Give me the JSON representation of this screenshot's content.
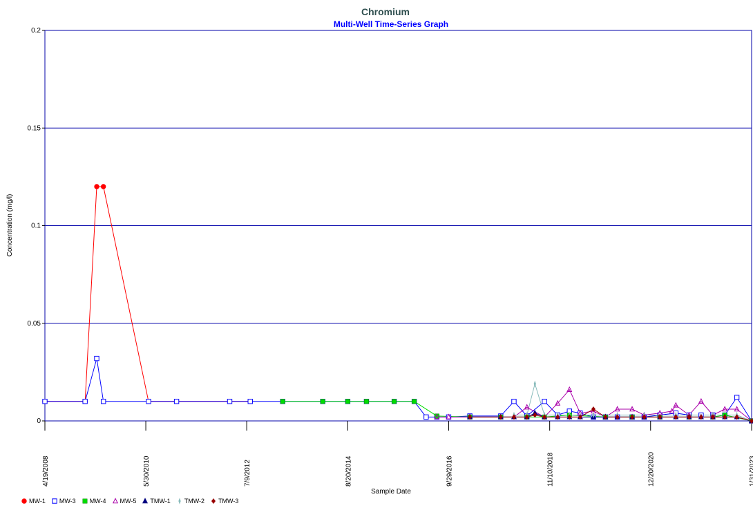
{
  "chart_data": {
    "type": "line",
    "title": "Chromium",
    "subtitle": "Multi-Well Time-Series Graph",
    "xlabel": "Sample Date",
    "ylabel": "Concentration (mg/l)",
    "ylim": [
      0,
      0.2
    ],
    "xlim": [
      "2008-04-19",
      "2023-01-31"
    ],
    "grid": {
      "horizontal": true,
      "vertical": false
    },
    "legend_position": "bottom-left",
    "y_ticks": [
      {
        "value": 0,
        "label": "0"
      },
      {
        "value": 0.05,
        "label": "0.05"
      },
      {
        "value": 0.1,
        "label": "0.1"
      },
      {
        "value": 0.15,
        "label": "0.15"
      },
      {
        "value": 0.2,
        "label": "0.2"
      }
    ],
    "x_ticks": [
      {
        "date": "2008-04-19",
        "label": "4/19/2008"
      },
      {
        "date": "2010-05-30",
        "label": "5/30/2010"
      },
      {
        "date": "2012-07-09",
        "label": "7/9/2012"
      },
      {
        "date": "2014-08-20",
        "label": "8/20/2014"
      },
      {
        "date": "2016-09-29",
        "label": "9/29/2016"
      },
      {
        "date": "2018-11-10",
        "label": "11/10/2018"
      },
      {
        "date": "2020-12-20",
        "label": "12/20/2020"
      },
      {
        "date": "2023-01-31",
        "label": "1/31/2023"
      }
    ],
    "colors": {
      "title": "#2f4f4f",
      "subtitle": "#0000ff",
      "frame": "#0000aa",
      "grid": "#0000aa"
    },
    "series": [
      {
        "name": "MW-1",
        "color": "#ff0000",
        "marker": "circle",
        "points": [
          [
            "2008-04-19",
            0.01
          ],
          [
            "2009-02-20",
            0.01
          ],
          [
            "2009-05-20",
            0.12
          ],
          [
            "2009-07-10",
            0.12
          ],
          [
            "2010-06-20",
            0.01
          ],
          [
            "2011-01-20",
            0.01
          ],
          [
            "2012-03-01",
            0.01
          ],
          [
            "2012-08-05",
            0.01
          ]
        ]
      },
      {
        "name": "MW-3",
        "color": "#0000ff",
        "marker": "square-open",
        "points": [
          [
            "2008-04-19",
            0.01
          ],
          [
            "2009-02-20",
            0.01
          ],
          [
            "2009-05-20",
            0.032
          ],
          [
            "2009-07-10",
            0.01
          ],
          [
            "2010-06-20",
            0.01
          ],
          [
            "2011-01-20",
            0.01
          ],
          [
            "2012-03-01",
            0.01
          ],
          [
            "2012-08-05",
            0.01
          ],
          [
            "2013-04-10",
            0.01
          ],
          [
            "2014-02-10",
            0.01
          ],
          [
            "2014-08-20",
            0.01
          ],
          [
            "2015-01-10",
            0.01
          ],
          [
            "2015-08-10",
            0.01
          ],
          [
            "2016-01-10",
            0.01
          ],
          [
            "2016-04-10",
            0.002
          ],
          [
            "2016-07-01",
            0.002
          ],
          [
            "2016-09-29",
            0.002
          ],
          [
            "2017-03-10",
            0.0025
          ],
          [
            "2017-11-01",
            0.0025
          ],
          [
            "2018-02-10",
            0.01
          ],
          [
            "2018-05-20",
            0.0025
          ],
          [
            "2018-10-01",
            0.01
          ],
          [
            "2019-01-10",
            0.003
          ],
          [
            "2019-04-10",
            0.005
          ],
          [
            "2019-07-01",
            0.004
          ],
          [
            "2019-10-10",
            0.002
          ],
          [
            "2020-01-10",
            0.002
          ],
          [
            "2020-04-10",
            0.002
          ],
          [
            "2020-08-01",
            0.002
          ],
          [
            "2020-11-01",
            0.002
          ],
          [
            "2021-03-01",
            0.003
          ],
          [
            "2021-07-01",
            0.004
          ],
          [
            "2021-10-10",
            0.003
          ],
          [
            "2022-01-10",
            0.003
          ],
          [
            "2022-04-10",
            0.003
          ],
          [
            "2022-07-10",
            0.003
          ],
          [
            "2022-10-10",
            0.012
          ],
          [
            "2023-01-31",
            0.0
          ]
        ]
      },
      {
        "name": "MW-4",
        "color": "#00dd00",
        "marker": "square",
        "points": [
          [
            "2013-04-10",
            0.01
          ],
          [
            "2014-02-10",
            0.01
          ],
          [
            "2014-08-20",
            0.01
          ],
          [
            "2015-01-10",
            0.01
          ],
          [
            "2015-08-10",
            0.01
          ],
          [
            "2016-01-10",
            0.01
          ],
          [
            "2016-07-01",
            0.0025
          ],
          [
            "2017-03-10",
            0.002
          ],
          [
            "2017-11-01",
            0.002
          ],
          [
            "2018-05-20",
            0.002
          ],
          [
            "2018-10-01",
            0.002
          ],
          [
            "2019-04-10",
            0.003
          ],
          [
            "2020-01-10",
            0.002
          ],
          [
            "2020-08-01",
            0.002
          ],
          [
            "2021-03-01",
            0.002
          ],
          [
            "2021-10-10",
            0.002
          ],
          [
            "2022-04-10",
            0.002
          ],
          [
            "2022-07-10",
            0.003
          ],
          [
            "2023-01-31",
            0.0
          ]
        ]
      },
      {
        "name": "MW-5",
        "color": "#aa00aa",
        "marker": "triangle-open",
        "points": [
          [
            "2016-07-01",
            0.002
          ],
          [
            "2016-09-29",
            0.002
          ],
          [
            "2017-03-10",
            0.002
          ],
          [
            "2017-11-01",
            0.002
          ],
          [
            "2018-02-10",
            0.002
          ],
          [
            "2018-05-20",
            0.007
          ],
          [
            "2018-10-01",
            0.002
          ],
          [
            "2019-01-10",
            0.009
          ],
          [
            "2019-04-10",
            0.016
          ],
          [
            "2019-07-01",
            0.004
          ],
          [
            "2019-10-10",
            0.005
          ],
          [
            "2020-01-10",
            0.002
          ],
          [
            "2020-04-10",
            0.006
          ],
          [
            "2020-08-01",
            0.006
          ],
          [
            "2020-11-01",
            0.003
          ],
          [
            "2021-03-01",
            0.004
          ],
          [
            "2021-06-01",
            0.005
          ],
          [
            "2021-07-01",
            0.008
          ],
          [
            "2021-10-10",
            0.003
          ],
          [
            "2022-01-10",
            0.01
          ],
          [
            "2022-04-10",
            0.003
          ],
          [
            "2022-07-10",
            0.006
          ],
          [
            "2022-10-10",
            0.006
          ],
          [
            "2023-01-31",
            0.0
          ]
        ]
      },
      {
        "name": "TMW-1",
        "color": "#000080",
        "marker": "triangle",
        "points": [
          [
            "2017-03-10",
            0.002
          ],
          [
            "2017-11-01",
            0.002
          ],
          [
            "2018-02-10",
            0.002
          ],
          [
            "2018-05-20",
            0.002
          ],
          [
            "2018-07-20",
            0.004
          ],
          [
            "2018-10-01",
            0.002
          ],
          [
            "2019-01-10",
            0.002
          ],
          [
            "2019-04-10",
            0.002
          ],
          [
            "2019-07-01",
            0.002
          ],
          [
            "2019-10-10",
            0.002
          ],
          [
            "2020-01-10",
            0.002
          ],
          [
            "2020-04-10",
            0.002
          ],
          [
            "2020-08-01",
            0.002
          ],
          [
            "2020-11-01",
            0.002
          ],
          [
            "2021-03-01",
            0.002
          ],
          [
            "2021-07-01",
            0.002
          ],
          [
            "2021-10-10",
            0.002
          ],
          [
            "2022-01-10",
            0.002
          ],
          [
            "2022-04-10",
            0.002
          ],
          [
            "2022-07-10",
            0.002
          ],
          [
            "2022-10-10",
            0.002
          ],
          [
            "2023-01-31",
            0.0
          ]
        ]
      },
      {
        "name": "TMW-2",
        "color": "#88bbbb",
        "marker": "diamond-thin",
        "points": [
          [
            "2018-02-10",
            0.003
          ],
          [
            "2018-05-20",
            0.003
          ],
          [
            "2018-07-20",
            0.019
          ],
          [
            "2018-10-01",
            0.003
          ],
          [
            "2019-01-10",
            0.003
          ],
          [
            "2019-04-10",
            0.003
          ],
          [
            "2019-07-01",
            0.003
          ],
          [
            "2019-10-10",
            0.003
          ],
          [
            "2020-04-10",
            0.003
          ],
          [
            "2020-11-01",
            0.003
          ],
          [
            "2021-07-01",
            0.003
          ],
          [
            "2022-04-10",
            0.003
          ],
          [
            "2022-10-10",
            0.003
          ],
          [
            "2023-01-31",
            0.0
          ]
        ]
      },
      {
        "name": "TMW-3",
        "color": "#990000",
        "marker": "diamond",
        "points": [
          [
            "2017-03-10",
            0.002
          ],
          [
            "2017-11-01",
            0.002
          ],
          [
            "2018-02-10",
            0.002
          ],
          [
            "2018-05-20",
            0.002
          ],
          [
            "2018-07-20",
            0.003
          ],
          [
            "2018-10-01",
            0.002
          ],
          [
            "2019-01-10",
            0.002
          ],
          [
            "2019-04-10",
            0.002
          ],
          [
            "2019-07-01",
            0.002
          ],
          [
            "2019-10-10",
            0.006
          ],
          [
            "2020-01-10",
            0.002
          ],
          [
            "2020-04-10",
            0.002
          ],
          [
            "2020-08-01",
            0.002
          ],
          [
            "2020-11-01",
            0.002
          ],
          [
            "2021-03-01",
            0.002
          ],
          [
            "2021-07-01",
            0.002
          ],
          [
            "2021-10-10",
            0.002
          ],
          [
            "2022-01-10",
            0.002
          ],
          [
            "2022-04-10",
            0.002
          ],
          [
            "2022-07-10",
            0.002
          ],
          [
            "2022-10-10",
            0.002
          ],
          [
            "2023-01-31",
            0.0
          ]
        ]
      }
    ]
  }
}
